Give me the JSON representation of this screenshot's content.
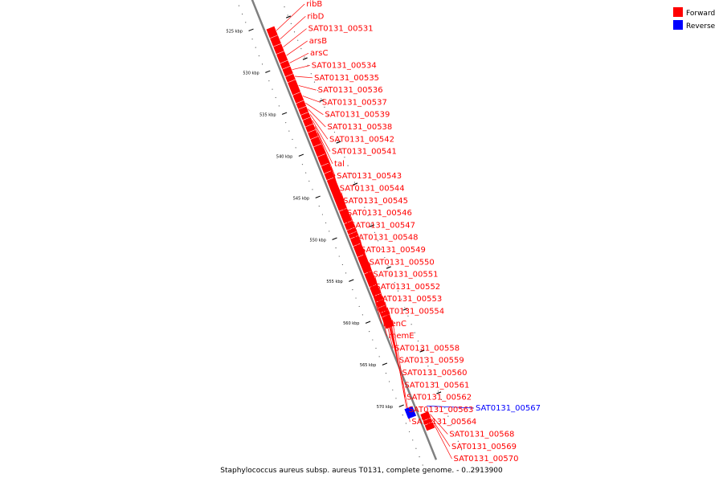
{
  "caption": "Staphylococcus aureus subsp. aureus T0131, complete genome. - 0..2913900",
  "legend": [
    {
      "label": "Forward",
      "color": "#ff0000"
    },
    {
      "label": "Reverse",
      "color": "#0000ff"
    }
  ],
  "colors": {
    "forward": "#ff0000",
    "reverse": "#0000ff",
    "backbone": "#808080"
  },
  "scale": {
    "labels": [
      {
        "kbp": 525,
        "text": "525 kbp"
      },
      {
        "kbp": 530,
        "text": "530 kbp"
      },
      {
        "kbp": 535,
        "text": "535 kbp"
      },
      {
        "kbp": 540,
        "text": "540 kbp"
      },
      {
        "kbp": 545,
        "text": "545 kbp"
      },
      {
        "kbp": 550,
        "text": "550 kbp"
      },
      {
        "kbp": 555,
        "text": "555 kbp"
      },
      {
        "kbp": 560,
        "text": "560 kbp"
      },
      {
        "kbp": 565,
        "text": "565 kbp"
      },
      {
        "kbp": 570,
        "text": "570 kbp"
      }
    ]
  },
  "genes": [
    {
      "name": "ribB",
      "strand": "forward",
      "start_kbp": 525.6,
      "end_kbp": 526.6
    },
    {
      "name": "ribD",
      "strand": "forward",
      "start_kbp": 526.7,
      "end_kbp": 527.6
    },
    {
      "name": "SAT0131_00531",
      "strand": "forward",
      "start_kbp": 527.7,
      "end_kbp": 528.5
    },
    {
      "name": "arsB",
      "strand": "forward",
      "start_kbp": 528.6,
      "end_kbp": 529.6
    },
    {
      "name": "arsC",
      "strand": "forward",
      "start_kbp": 529.7,
      "end_kbp": 530.3
    },
    {
      "name": "SAT0131_00534",
      "strand": "forward",
      "start_kbp": 530.4,
      "end_kbp": 531.2
    },
    {
      "name": "SAT0131_00535",
      "strand": "forward",
      "start_kbp": 531.3,
      "end_kbp": 531.9
    },
    {
      "name": "SAT0131_00536",
      "strand": "forward",
      "start_kbp": 532.0,
      "end_kbp": 533.4
    },
    {
      "name": "SAT0131_00537",
      "strand": "forward",
      "start_kbp": 533.5,
      "end_kbp": 534.4
    },
    {
      "name": "SAT0131_00539",
      "strand": "forward",
      "start_kbp": 534.5,
      "end_kbp": 535.1
    },
    {
      "name": "SAT0131_00538",
      "strand": "forward",
      "start_kbp": 535.2,
      "end_kbp": 535.8
    },
    {
      "name": "SAT0131_00542",
      "strand": "forward",
      "start_kbp": 535.9,
      "end_kbp": 536.4
    },
    {
      "name": "SAT0131_00541",
      "strand": "forward",
      "start_kbp": 536.5,
      "end_kbp": 537.2
    },
    {
      "name": "tal",
      "strand": "forward",
      "start_kbp": 537.3,
      "end_kbp": 537.9
    },
    {
      "name": "SAT0131_00543",
      "strand": "forward",
      "start_kbp": 538.0,
      "end_kbp": 538.7
    },
    {
      "name": "SAT0131_00544",
      "strand": "forward",
      "start_kbp": 538.8,
      "end_kbp": 539.6
    },
    {
      "name": "SAT0131_00545",
      "strand": "forward",
      "start_kbp": 539.7,
      "end_kbp": 540.8
    },
    {
      "name": "SAT0131_00546",
      "strand": "forward",
      "start_kbp": 540.9,
      "end_kbp": 541.9
    },
    {
      "name": "SAT0131_00547",
      "strand": "forward",
      "start_kbp": 542.0,
      "end_kbp": 542.8
    },
    {
      "name": "SAT0131_00548",
      "strand": "forward",
      "start_kbp": 542.9,
      "end_kbp": 543.6
    },
    {
      "name": "SAT0131_00549",
      "strand": "forward",
      "start_kbp": 543.7,
      "end_kbp": 547.3
    },
    {
      "name": "SAT0131_00550",
      "strand": "forward",
      "start_kbp": 547.4,
      "end_kbp": 548.8
    },
    {
      "name": "SAT0131_00551",
      "strand": "forward",
      "start_kbp": 548.9,
      "end_kbp": 549.6
    },
    {
      "name": "SAT0131_00552",
      "strand": "forward",
      "start_kbp": 549.7,
      "end_kbp": 550.1
    },
    {
      "name": "SAT0131_00553",
      "strand": "forward",
      "start_kbp": 550.2,
      "end_kbp": 550.6
    },
    {
      "name": "SAT0131_00554",
      "strand": "forward",
      "start_kbp": 550.7,
      "end_kbp": 551.5
    },
    {
      "name": "menC",
      "strand": "forward",
      "start_kbp": 551.6,
      "end_kbp": 552.8
    },
    {
      "name": "memE",
      "strand": "forward",
      "start_kbp": 552.9,
      "end_kbp": 554.8
    },
    {
      "name": "SAT0131_00558",
      "strand": "forward",
      "start_kbp": 554.9,
      "end_kbp": 556.4
    },
    {
      "name": "SAT0131_00559",
      "strand": "forward",
      "start_kbp": 556.5,
      "end_kbp": 557.5
    },
    {
      "name": "SAT0131_00560",
      "strand": "forward",
      "start_kbp": 557.6,
      "end_kbp": 558.2
    },
    {
      "name": "SAT0131_00561",
      "strand": "forward",
      "start_kbp": 558.3,
      "end_kbp": 558.9
    },
    {
      "name": "SAT0131_00562",
      "strand": "forward",
      "start_kbp": 559.0,
      "end_kbp": 559.5
    },
    {
      "name": "SAT0131_00563",
      "strand": "forward",
      "start_kbp": 559.6,
      "end_kbp": 560.0
    },
    {
      "name": "SAT0131_00564",
      "strand": "forward",
      "start_kbp": 560.1,
      "end_kbp": 561.4
    },
    {
      "name": "SAT0131_00567",
      "strand": "reverse",
      "start_kbp": 570.5,
      "end_kbp": 571.6
    },
    {
      "name": "SAT0131_00568",
      "strand": "forward",
      "start_kbp": 571.7,
      "end_kbp": 572.4
    },
    {
      "name": "SAT0131_00569",
      "strand": "forward",
      "start_kbp": 572.5,
      "end_kbp": 572.9
    },
    {
      "name": "SAT0131_00570",
      "strand": "forward",
      "start_kbp": 573.0,
      "end_kbp": 573.6
    }
  ]
}
